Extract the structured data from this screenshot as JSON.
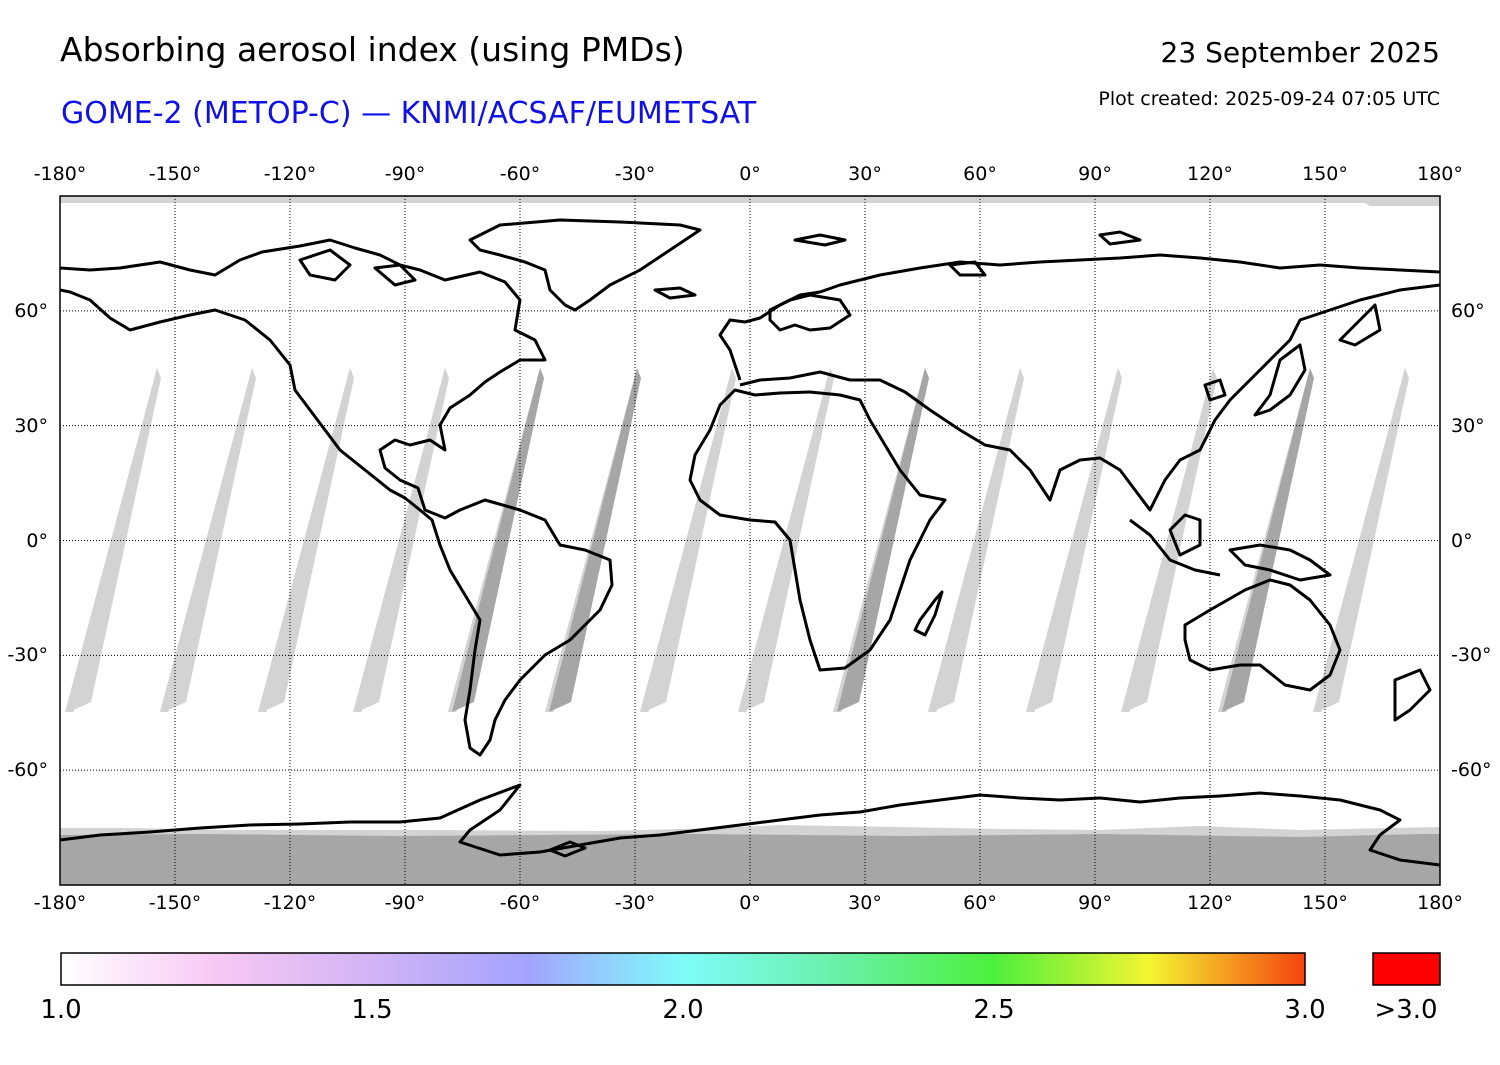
{
  "title": "Absorbing aerosol index (using PMDs)",
  "subtitle": "GOME-2 (METOP-C) — KNMI/ACSAF/EUMETSAT",
  "date": "23 September 2025",
  "plot_created": "Plot created: 2025-09-24 07:05 UTC",
  "map": {
    "projection": "equirectangular",
    "lon_range": [
      -180,
      180
    ],
    "lat_range": [
      -90,
      90
    ],
    "lon_ticks": [
      {
        "value": -180,
        "label": "-180°"
      },
      {
        "value": -150,
        "label": "-150°"
      },
      {
        "value": -120,
        "label": "-120°"
      },
      {
        "value": -90,
        "label": "-90°"
      },
      {
        "value": -60,
        "label": "-60°"
      },
      {
        "value": -30,
        "label": "-30°"
      },
      {
        "value": 0,
        "label": "0°"
      },
      {
        "value": 30,
        "label": "30°"
      },
      {
        "value": 60,
        "label": "60°"
      },
      {
        "value": 90,
        "label": "90°"
      },
      {
        "value": 120,
        "label": "120°"
      },
      {
        "value": 150,
        "label": "150°"
      },
      {
        "value": 180,
        "label": "180°"
      }
    ],
    "lat_ticks": [
      {
        "value": 60,
        "label": "60°"
      },
      {
        "value": 30,
        "label": "30°"
      },
      {
        "value": 0,
        "label": "0°"
      },
      {
        "value": -30,
        "label": "-30°"
      },
      {
        "value": -60,
        "label": "-60°"
      }
    ],
    "grid": "dotted",
    "colors": {
      "no_data": "#d3d3d3",
      "orbit_overlap": "#a6a6a6",
      "coast": "#000000"
    }
  },
  "colorbar": {
    "range": [
      1.0,
      3.0
    ],
    "labels": [
      {
        "value": 1.0,
        "label": "1.0"
      },
      {
        "value": 1.5,
        "label": "1.5"
      },
      {
        "value": 2.0,
        "label": "2.0"
      },
      {
        "value": 2.5,
        "label": "2.5"
      },
      {
        "value": 3.0,
        "label": "3.0"
      }
    ],
    "overflow_label": ">3.0",
    "overflow_color": "#ff0000",
    "stops": [
      {
        "value": 1.0,
        "color": "#ffffff"
      },
      {
        "value": 1.25,
        "color": "#f7c8f4"
      },
      {
        "value": 1.5,
        "color": "#d2b4f5"
      },
      {
        "value": 1.75,
        "color": "#a3a3ff"
      },
      {
        "value": 2.0,
        "color": "#7ffcfa"
      },
      {
        "value": 2.25,
        "color": "#6af0a8"
      },
      {
        "value": 2.5,
        "color": "#4df03c"
      },
      {
        "value": 2.75,
        "color": "#f4f531"
      },
      {
        "value": 3.0,
        "color": "#f5430e"
      }
    ]
  }
}
